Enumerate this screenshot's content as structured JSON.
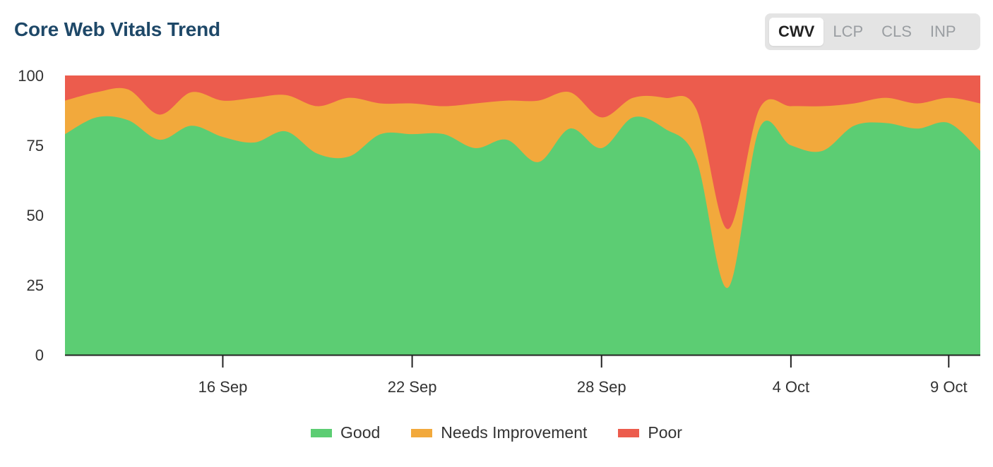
{
  "header": {
    "title": "Core Web Vitals Trend",
    "tabs": [
      {
        "label": "CWV",
        "active": true
      },
      {
        "label": "LCP",
        "active": false
      },
      {
        "label": "CLS",
        "active": false
      },
      {
        "label": "INP",
        "active": false
      }
    ]
  },
  "colors": {
    "good": "#5ccd73",
    "needs_improvement": "#f2a93c",
    "poor": "#ec5c4d",
    "axis": "#222222"
  },
  "chart_data": {
    "type": "area",
    "stacked": true,
    "title": "Core Web Vitals Trend",
    "ylim": [
      0,
      100
    ],
    "yticks": [
      0,
      25,
      50,
      75,
      100
    ],
    "xticks": [
      {
        "x": "2024-09-16",
        "label": "16 Sep"
      },
      {
        "x": "2024-09-22",
        "label": "22 Sep"
      },
      {
        "x": "2024-09-28",
        "label": "28 Sep"
      },
      {
        "x": "2024-10-04",
        "label": "4 Oct"
      },
      {
        "x": "2024-10-09",
        "label": "9 Oct"
      }
    ],
    "x": [
      "2024-09-11",
      "2024-09-12",
      "2024-09-13",
      "2024-09-14",
      "2024-09-15",
      "2024-09-16",
      "2024-09-17",
      "2024-09-18",
      "2024-09-19",
      "2024-09-20",
      "2024-09-21",
      "2024-09-22",
      "2024-09-23",
      "2024-09-24",
      "2024-09-25",
      "2024-09-26",
      "2024-09-27",
      "2024-09-28",
      "2024-09-29",
      "2024-09-30",
      "2024-10-01",
      "2024-10-02",
      "2024-10-03",
      "2024-10-04",
      "2024-10-05",
      "2024-10-06",
      "2024-10-07",
      "2024-10-08",
      "2024-10-09",
      "2024-10-10"
    ],
    "series": [
      {
        "name": "Good",
        "values": [
          79,
          85,
          84,
          77,
          82,
          78,
          76,
          80,
          72,
          71,
          79,
          79,
          79,
          74,
          77,
          69,
          81,
          74,
          85,
          81,
          70,
          24,
          81,
          75,
          73,
          82,
          83,
          81,
          83,
          73
        ]
      },
      {
        "name": "Needs Improvement",
        "values": [
          12,
          9,
          11,
          9,
          12,
          13,
          16,
          13,
          17,
          21,
          11,
          11,
          10,
          16,
          14,
          22,
          13,
          11,
          7,
          11,
          18,
          21,
          7,
          14,
          16,
          8,
          9,
          9,
          9,
          17
        ]
      },
      {
        "name": "Poor",
        "values": [
          9,
          6,
          5,
          14,
          6,
          9,
          8,
          7,
          11,
          8,
          10,
          10,
          11,
          10,
          9,
          9,
          6,
          15,
          8,
          8,
          12,
          55,
          12,
          11,
          11,
          10,
          8,
          10,
          8,
          10
        ]
      }
    ],
    "legend": [
      "Good",
      "Needs Improvement",
      "Poor"
    ],
    "legend_position": "bottom",
    "grid": false
  }
}
